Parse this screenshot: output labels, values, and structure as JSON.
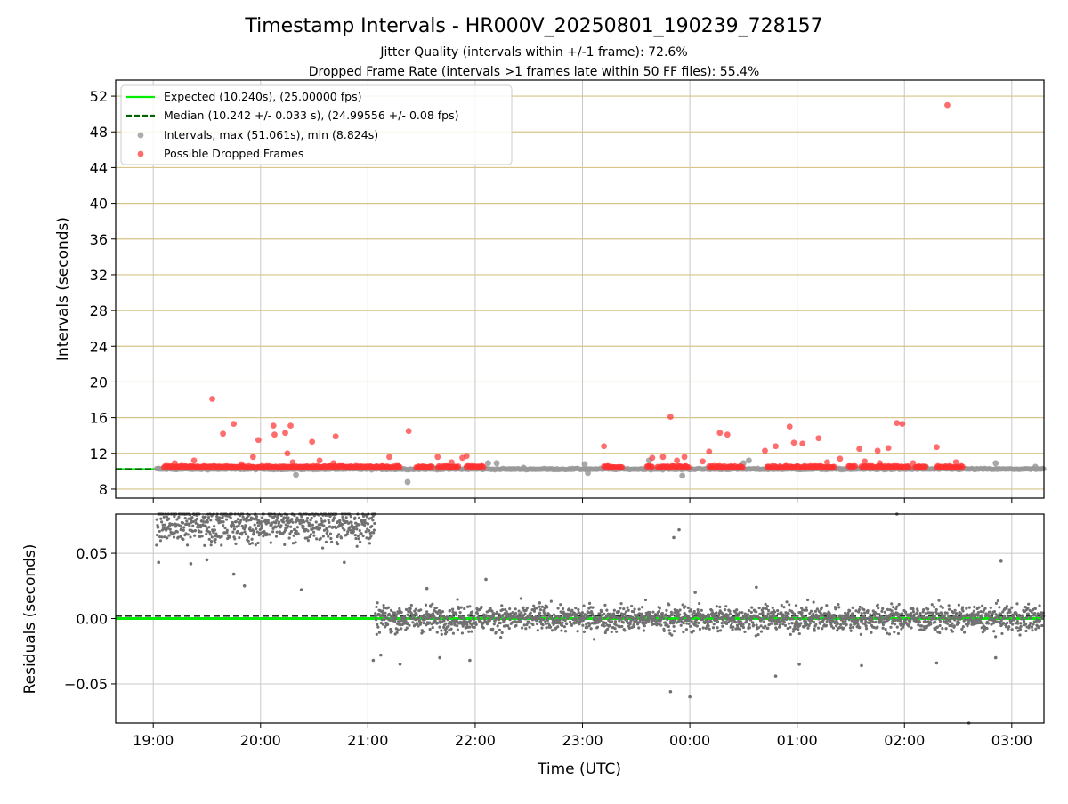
{
  "figure": {
    "title": "Timestamp Intervals - HR000V_20250801_190239_728157",
    "subtitle_line1": "Jitter Quality (intervals within +/-1 frame): 72.6%",
    "subtitle_line2": "Dropped Frame Rate (intervals >1 frames late within 50 FF files): 55.4%"
  },
  "colors": {
    "expected": "#00ee00",
    "median": "#006400",
    "interval": "#999999",
    "dropped": "#ff3030",
    "residual": "#707070",
    "hgrid_top": "#d6c489",
    "grid": "#c8c8c8"
  },
  "chart_data": [
    {
      "type": "scatter",
      "panel": "top",
      "ylabel": "Intervals (seconds)",
      "ylim": [
        7,
        53.8
      ],
      "yticks": [
        8,
        12,
        16,
        20,
        24,
        28,
        32,
        36,
        40,
        44,
        48,
        52
      ],
      "x_range_hours": [
        18.65,
        27.3
      ],
      "grid": true,
      "legend_position": "upper-left",
      "expected_interval_s": 10.24,
      "median_interval_s": 10.242,
      "max_interval_s": 51.061,
      "min_interval_s": 8.824,
      "legend": [
        {
          "label": "Expected (10.240s), (25.00000 fps)",
          "style": "solid-line"
        },
        {
          "label": "Median (10.242 +/- 0.033 s), (24.99556 +/- 0.08 fps)",
          "style": "dashed-line"
        },
        {
          "label": "Intervals, max (51.061s), min (8.824s)",
          "style": "gray-dot"
        },
        {
          "label": "Possible Dropped Frames",
          "style": "red-dot"
        }
      ],
      "dropped_outliers": [
        [
          19.55,
          18.1
        ],
        [
          19.65,
          14.2
        ],
        [
          19.75,
          15.3
        ],
        [
          19.82,
          10.8
        ],
        [
          19.93,
          11.6
        ],
        [
          19.98,
          13.5
        ],
        [
          20.12,
          15.1
        ],
        [
          20.13,
          14.1
        ],
        [
          20.23,
          14.3
        ],
        [
          20.25,
          12.0
        ],
        [
          20.28,
          15.1
        ],
        [
          20.3,
          11.0
        ],
        [
          20.48,
          13.3
        ],
        [
          20.55,
          11.2
        ],
        [
          20.7,
          13.9
        ],
        [
          20.68,
          10.9
        ],
        [
          21.2,
          11.6
        ],
        [
          21.38,
          14.5
        ],
        [
          21.65,
          11.6
        ],
        [
          21.78,
          11.0
        ],
        [
          21.88,
          11.5
        ],
        [
          21.92,
          11.7
        ],
        [
          19.38,
          11.2
        ],
        [
          19.2,
          10.9
        ],
        [
          23.2,
          12.8
        ],
        [
          23.65,
          11.5
        ],
        [
          23.75,
          11.6
        ],
        [
          23.82,
          16.1
        ],
        [
          23.88,
          11.2
        ],
        [
          23.95,
          11.6
        ],
        [
          24.12,
          11.1
        ],
        [
          24.18,
          12.2
        ],
        [
          24.28,
          14.3
        ],
        [
          24.35,
          14.1
        ],
        [
          24.7,
          12.3
        ],
        [
          24.8,
          12.8
        ],
        [
          24.93,
          15.0
        ],
        [
          24.97,
          13.2
        ],
        [
          25.05,
          13.1
        ],
        [
          25.2,
          13.7
        ],
        [
          25.28,
          11.0
        ],
        [
          25.4,
          11.4
        ],
        [
          25.58,
          12.5
        ],
        [
          25.63,
          11.1
        ],
        [
          25.75,
          12.3
        ],
        [
          25.77,
          10.9
        ],
        [
          25.85,
          12.6
        ],
        [
          25.93,
          15.4
        ],
        [
          25.98,
          15.3
        ],
        [
          26.08,
          10.9
        ],
        [
          26.3,
          12.7
        ],
        [
          26.48,
          11.0
        ],
        [
          26.4,
          51.0
        ]
      ],
      "gray_outliers": [
        [
          19.05,
          10.3
        ],
        [
          20.33,
          9.6
        ],
        [
          21.28,
          10.6
        ],
        [
          21.37,
          8.8
        ],
        [
          21.6,
          10.5
        ],
        [
          22.12,
          10.9
        ],
        [
          22.2,
          10.9
        ],
        [
          22.45,
          10.4
        ],
        [
          23.02,
          10.8
        ],
        [
          23.05,
          9.8
        ],
        [
          23.62,
          11.2
        ],
        [
          23.93,
          9.5
        ],
        [
          24.5,
          10.9
        ],
        [
          24.55,
          11.2
        ],
        [
          26.2,
          10.5
        ],
        [
          26.85,
          10.9
        ],
        [
          27.22,
          10.5
        ]
      ],
      "dropped_clusters_hours": [
        [
          19.1,
          21.3
        ],
        [
          21.45,
          21.6
        ],
        [
          21.65,
          21.85
        ],
        [
          21.92,
          22.08
        ],
        [
          23.2,
          23.38
        ],
        [
          23.6,
          23.65
        ],
        [
          23.7,
          24.0
        ],
        [
          24.18,
          24.5
        ],
        [
          24.72,
          25.35
        ],
        [
          25.48,
          25.55
        ],
        [
          25.6,
          26.05
        ],
        [
          26.1,
          26.2
        ],
        [
          26.3,
          26.55
        ]
      ]
    },
    {
      "type": "scatter",
      "panel": "bottom",
      "ylabel": "Residuals (seconds)",
      "xlabel": "Time (UTC)",
      "ylim": [
        -0.08,
        0.08
      ],
      "yticks": [
        -0.05,
        0.0,
        0.05
      ],
      "ytick_labels": [
        "−0.05",
        "0.00",
        "0.05"
      ],
      "xticks_hours": [
        19,
        20,
        21,
        22,
        23,
        24,
        25,
        26,
        27
      ],
      "xtick_labels": [
        "19:00",
        "20:00",
        "21:00",
        "22:00",
        "23:00",
        "00:00",
        "01:00",
        "02:00",
        "03:00"
      ],
      "x_range_hours": [
        18.65,
        27.3
      ],
      "grid": true,
      "expected_residual": 0.0,
      "median_residual": 0.002,
      "segment_1": {
        "start_hour": 19.03,
        "end_hour": 21.07,
        "center": 0.072,
        "spread": 0.007
      },
      "segment_2": {
        "start_hour": 21.07,
        "end_hour": 27.3,
        "center": 0.0,
        "spread": 0.005
      },
      "residual_outliers": [
        [
          19.05,
          0.043
        ],
        [
          19.35,
          0.042
        ],
        [
          19.5,
          0.045
        ],
        [
          19.75,
          0.034
        ],
        [
          19.85,
          0.025
        ],
        [
          20.38,
          0.022
        ],
        [
          20.78,
          0.043
        ],
        [
          21.05,
          -0.032
        ],
        [
          21.12,
          -0.028
        ],
        [
          21.3,
          -0.035
        ],
        [
          21.67,
          -0.03
        ],
        [
          21.55,
          0.023
        ],
        [
          21.95,
          -0.032
        ],
        [
          22.1,
          0.03
        ],
        [
          22.6,
          0.012
        ],
        [
          23.82,
          -0.056
        ],
        [
          23.85,
          0.062
        ],
        [
          23.9,
          0.068
        ],
        [
          24.0,
          -0.06
        ],
        [
          24.05,
          0.02
        ],
        [
          24.62,
          0.024
        ],
        [
          24.8,
          -0.044
        ],
        [
          25.02,
          -0.035
        ],
        [
          25.6,
          -0.036
        ],
        [
          25.93,
          0.08
        ],
        [
          26.3,
          -0.034
        ],
        [
          26.6,
          -0.08
        ],
        [
          26.85,
          -0.03
        ],
        [
          26.9,
          0.044
        ]
      ]
    }
  ]
}
